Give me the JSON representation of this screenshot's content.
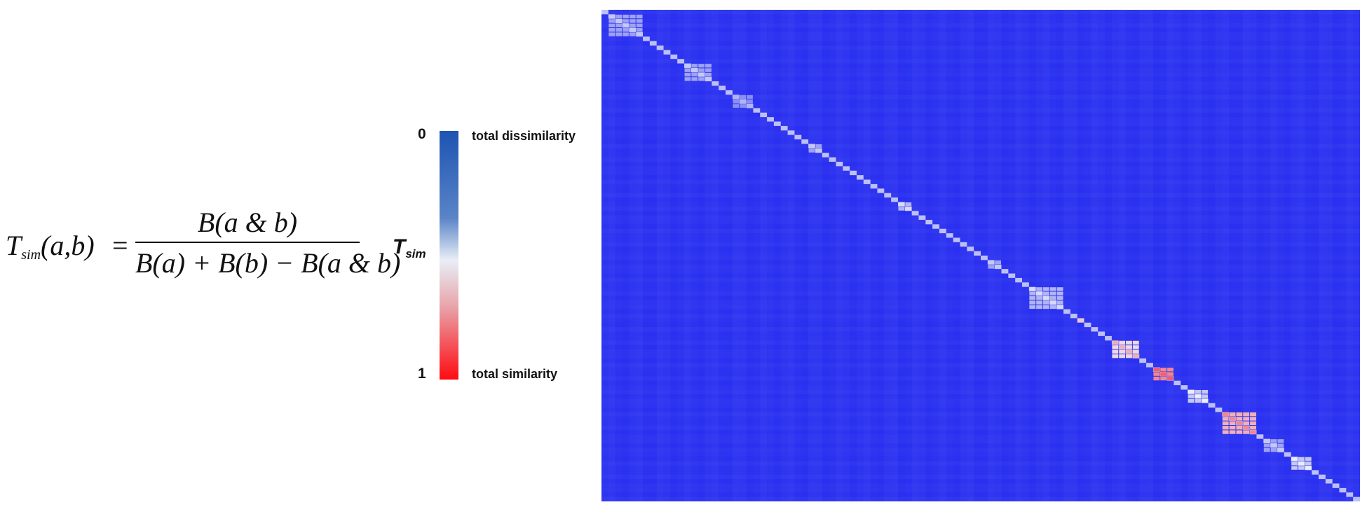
{
  "formula": {
    "lhs_symbol": "T",
    "lhs_sub": "sim",
    "lhs_args": "(a,b)",
    "equals": "=",
    "numerator": "B(a & b)",
    "denominator": "B(a) + B(b) − B(a & b)"
  },
  "colorbar": {
    "title_main": "T",
    "title_sub": "sim",
    "tick_top": "0",
    "tick_bottom": "1",
    "label_top": "total dissimilarity",
    "label_bottom": "total similarity",
    "color_top": "#1d54b2",
    "color_mid": "#e9eef6",
    "color_bottom": "#ff0b12"
  },
  "chart_data": {
    "type": "heatmap",
    "title": "",
    "xlabel": "",
    "ylabel": "",
    "value_range": [
      0,
      1
    ],
    "matrix_size": 110,
    "background_color": "#2a2ff0",
    "diagonal_clusters": [
      {
        "start": 1,
        "size": 5,
        "value": 0.3
      },
      {
        "start": 12,
        "size": 4,
        "value": 0.3
      },
      {
        "start": 19,
        "size": 3,
        "value": 0.25
      },
      {
        "start": 30,
        "size": 2,
        "value": 0.3
      },
      {
        "start": 43,
        "size": 2,
        "value": 0.35
      },
      {
        "start": 56,
        "size": 2,
        "value": 0.3
      },
      {
        "start": 62,
        "size": 5,
        "value": 0.35
      },
      {
        "start": 69,
        "size": 1,
        "value": 0.5
      },
      {
        "start": 74,
        "size": 4,
        "value": 0.55
      },
      {
        "start": 80,
        "size": 3,
        "value": 0.75
      },
      {
        "start": 85,
        "size": 3,
        "value": 0.4
      },
      {
        "start": 90,
        "size": 5,
        "value": 0.65
      },
      {
        "start": 96,
        "size": 3,
        "value": 0.3
      },
      {
        "start": 100,
        "size": 3,
        "value": 0.4
      }
    ]
  }
}
